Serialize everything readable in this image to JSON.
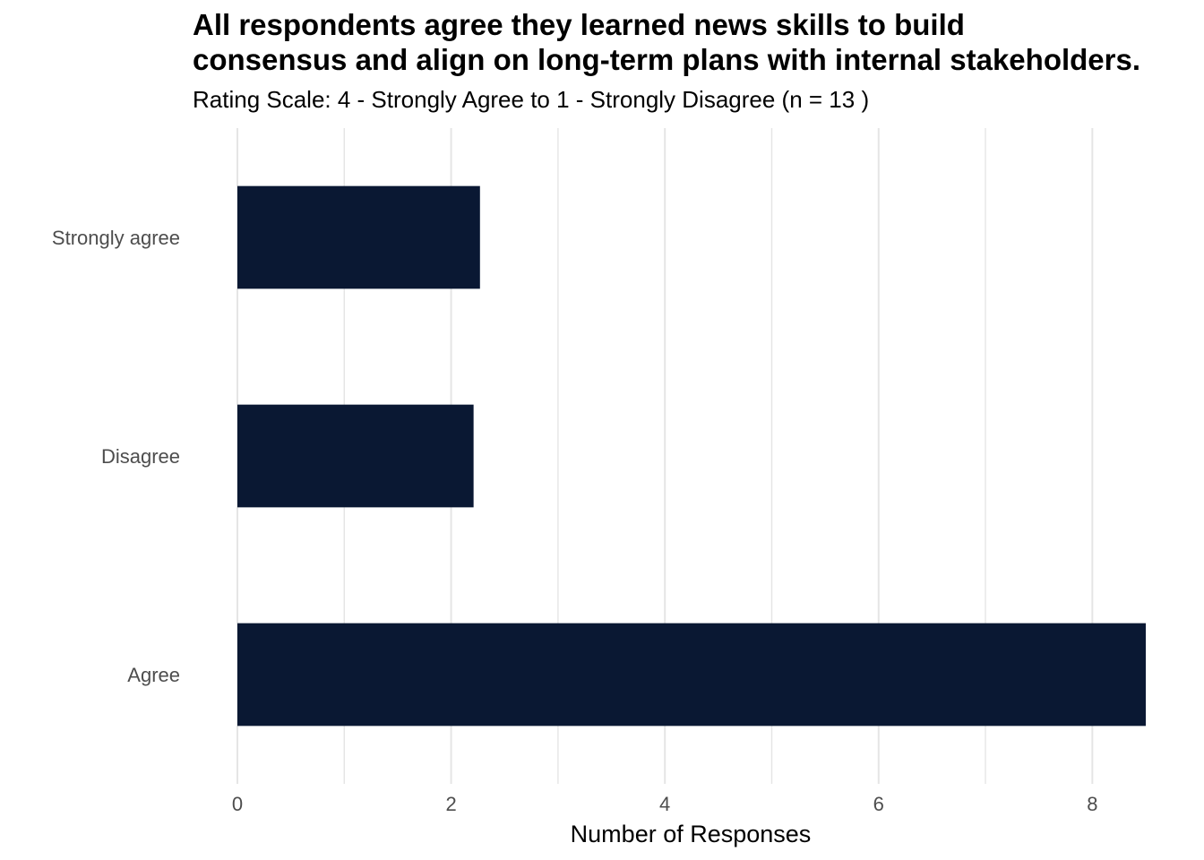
{
  "chart_data": {
    "type": "bar",
    "orientation": "horizontal",
    "title": "All respondents agree they learned news skills to build\nconsensus and align on long-term plans with internal stakeholders.",
    "subtitle": "Rating Scale: 4 - Strongly Agree to 1 - Strongly Disagree (n = 13 )",
    "xlabel": "Number of Responses",
    "ylabel": "",
    "categories": [
      "Strongly agree",
      "Disagree",
      "Agree"
    ],
    "values": [
      2.27,
      2.21,
      8.5
    ],
    "xlim": [
      0,
      8.5
    ],
    "x_ticks": [
      "0",
      "2",
      "4",
      "6",
      "8"
    ],
    "grid": true,
    "legend": "none",
    "bar_color": "#0a1833",
    "grid_color": "#e5e5e5"
  }
}
